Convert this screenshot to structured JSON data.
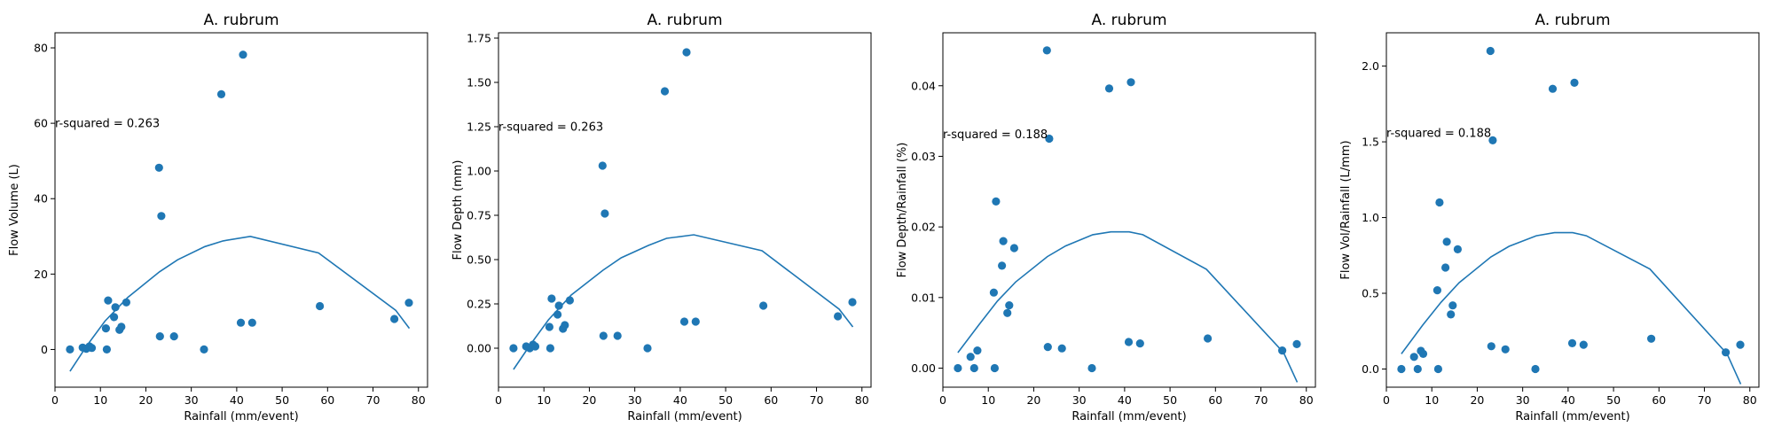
{
  "chart_data": [
    {
      "type": "scatter",
      "title": "A. rubrum",
      "xlabel": "Rainfall (mm/event)",
      "ylabel": "Flow Volume (L)",
      "xlim": [
        0,
        82
      ],
      "ylim": [
        -10,
        84
      ],
      "xticks": [
        0,
        10,
        20,
        30,
        40,
        50,
        60,
        70,
        80
      ],
      "yticks": [
        0,
        20,
        40,
        60,
        80
      ],
      "ytick_labels": [
        "0",
        "20",
        "40",
        "60",
        "80"
      ],
      "annotation": "r-squared = 0.263",
      "annotation_at": [
        0,
        60
      ],
      "points": [
        [
          3.3,
          0
        ],
        [
          6.1,
          0.5
        ],
        [
          6.9,
          0.2
        ],
        [
          7.6,
          0.8
        ],
        [
          8.1,
          0.4
        ],
        [
          11.2,
          5.6
        ],
        [
          11.4,
          0
        ],
        [
          11.7,
          13
        ],
        [
          13,
          8.6
        ],
        [
          13.3,
          11.2
        ],
        [
          14.2,
          5.2
        ],
        [
          14.6,
          6
        ],
        [
          15.7,
          12.5
        ],
        [
          22.9,
          48.2
        ],
        [
          23.1,
          3.5
        ],
        [
          23.4,
          35.4
        ],
        [
          26.2,
          3.5
        ],
        [
          32.8,
          0
        ],
        [
          36.6,
          67.7
        ],
        [
          40.9,
          7.1
        ],
        [
          41.4,
          78.2
        ],
        [
          43.4,
          7.1
        ],
        [
          58.3,
          11.5
        ],
        [
          74.7,
          8.1
        ],
        [
          77.9,
          12.4
        ]
      ],
      "fit_line": [
        [
          3.3,
          -5.8
        ],
        [
          7,
          1
        ],
        [
          11,
          7.5
        ],
        [
          16,
          13.8
        ],
        [
          23,
          20.6
        ],
        [
          27,
          23.8
        ],
        [
          33,
          27.3
        ],
        [
          37,
          28.8
        ],
        [
          43,
          30
        ],
        [
          58,
          25.6
        ],
        [
          75,
          10.4
        ],
        [
          78,
          5.6
        ]
      ]
    },
    {
      "type": "scatter",
      "title": "A. rubrum",
      "xlabel": "Rainfall (mm/event)",
      "ylabel": "Flow Depth (mm)",
      "xlim": [
        0,
        82
      ],
      "ylim": [
        -0.22,
        1.78
      ],
      "xticks": [
        0,
        10,
        20,
        30,
        40,
        50,
        60,
        70,
        80
      ],
      "yticks": [
        0,
        0.25,
        0.5,
        0.75,
        1.0,
        1.25,
        1.5,
        1.75
      ],
      "ytick_labels": [
        "0.00",
        "0.25",
        "0.50",
        "0.75",
        "1.00",
        "1.25",
        "1.50",
        "1.75"
      ],
      "annotation": "r-squared = 0.263",
      "annotation_at": [
        0,
        1.25
      ],
      "points": [
        [
          3.3,
          0
        ],
        [
          6.1,
          0.01
        ],
        [
          6.9,
          0
        ],
        [
          7.6,
          0.02
        ],
        [
          8.1,
          0.01
        ],
        [
          11.2,
          0.12
        ],
        [
          11.4,
          0
        ],
        [
          11.7,
          0.28
        ],
        [
          13,
          0.19
        ],
        [
          13.3,
          0.24
        ],
        [
          14.2,
          0.11
        ],
        [
          14.6,
          0.13
        ],
        [
          15.7,
          0.27
        ],
        [
          22.9,
          1.03
        ],
        [
          23.1,
          0.07
        ],
        [
          23.4,
          0.76
        ],
        [
          26.2,
          0.07
        ],
        [
          32.8,
          0
        ],
        [
          36.6,
          1.45
        ],
        [
          40.9,
          0.15
        ],
        [
          41.4,
          1.67
        ],
        [
          43.4,
          0.15
        ],
        [
          58.3,
          0.24
        ],
        [
          74.7,
          0.18
        ],
        [
          77.9,
          0.26
        ]
      ],
      "fit_line": [
        [
          3.3,
          -0.12
        ],
        [
          7,
          0.02
        ],
        [
          11,
          0.16
        ],
        [
          16,
          0.3
        ],
        [
          23,
          0.44
        ],
        [
          27,
          0.51
        ],
        [
          33,
          0.58
        ],
        [
          37,
          0.62
        ],
        [
          43,
          0.64
        ],
        [
          58,
          0.55
        ],
        [
          75,
          0.22
        ],
        [
          78,
          0.12
        ]
      ]
    },
    {
      "type": "scatter",
      "title": "A. rubrum",
      "xlabel": "Rainfall (mm/event)",
      "ylabel": "Flow Depth/Rainfall (%)",
      "xlim": [
        0,
        82
      ],
      "ylim": [
        -0.0027,
        0.0475
      ],
      "xticks": [
        0,
        10,
        20,
        30,
        40,
        50,
        60,
        70,
        80
      ],
      "yticks": [
        0,
        0.01,
        0.02,
        0.03,
        0.04
      ],
      "ytick_labels": [
        "0.00",
        "0.01",
        "0.02",
        "0.03",
        "0.04"
      ],
      "annotation": "r-squared = 0.188",
      "annotation_at": [
        0,
        0.0331
      ],
      "points": [
        [
          3.3,
          0
        ],
        [
          6.1,
          0.0016
        ],
        [
          6.9,
          0
        ],
        [
          7.6,
          0.0025
        ],
        [
          11.2,
          0.0107
        ],
        [
          11.4,
          0
        ],
        [
          11.7,
          0.0236
        ],
        [
          13,
          0.0145
        ],
        [
          13.3,
          0.018
        ],
        [
          14.2,
          0.0078
        ],
        [
          14.6,
          0.0089
        ],
        [
          15.7,
          0.017
        ],
        [
          22.9,
          0.045
        ],
        [
          23.1,
          0.003
        ],
        [
          23.4,
          0.0325
        ],
        [
          26.2,
          0.0028
        ],
        [
          32.8,
          0
        ],
        [
          36.6,
          0.0396
        ],
        [
          40.9,
          0.0037
        ],
        [
          41.4,
          0.0405
        ],
        [
          43.4,
          0.0035
        ],
        [
          58.3,
          0.0042
        ],
        [
          74.7,
          0.0025
        ],
        [
          77.9,
          0.0034
        ]
      ],
      "fit_line": [
        [
          3.3,
          0.0022
        ],
        [
          8,
          0.0062
        ],
        [
          12,
          0.0095
        ],
        [
          16,
          0.0122
        ],
        [
          23,
          0.0158
        ],
        [
          27,
          0.0173
        ],
        [
          33,
          0.0189
        ],
        [
          37,
          0.0193
        ],
        [
          41,
          0.0193
        ],
        [
          44,
          0.0189
        ],
        [
          58,
          0.014
        ],
        [
          75,
          0.0022
        ],
        [
          78,
          -0.002
        ]
      ]
    },
    {
      "type": "scatter",
      "title": "A. rubrum",
      "xlabel": "Rainfall (mm/event)",
      "ylabel": "Flow Vol/Rainfall (L/mm)",
      "xlim": [
        0,
        82
      ],
      "ylim": [
        -0.12,
        2.22
      ],
      "xticks": [
        0,
        10,
        20,
        30,
        40,
        50,
        60,
        70,
        80
      ],
      "yticks": [
        0,
        0.5,
        1.0,
        1.5,
        2.0
      ],
      "ytick_labels": [
        "0.0",
        "0.5",
        "1.0",
        "1.5",
        "2.0"
      ],
      "annotation": "r-squared = 0.188",
      "annotation_at": [
        0,
        1.56
      ],
      "points": [
        [
          3.3,
          0
        ],
        [
          6.1,
          0.08
        ],
        [
          6.9,
          0
        ],
        [
          7.6,
          0.12
        ],
        [
          8.1,
          0.1
        ],
        [
          11.2,
          0.52
        ],
        [
          11.4,
          0
        ],
        [
          11.7,
          1.1
        ],
        [
          13,
          0.67
        ],
        [
          13.3,
          0.84
        ],
        [
          14.2,
          0.36
        ],
        [
          14.6,
          0.42
        ],
        [
          15.7,
          0.79
        ],
        [
          22.9,
          2.1
        ],
        [
          23.1,
          0.15
        ],
        [
          23.4,
          1.51
        ],
        [
          26.2,
          0.13
        ],
        [
          32.8,
          0
        ],
        [
          36.6,
          1.85
        ],
        [
          40.9,
          0.17
        ],
        [
          41.4,
          1.89
        ],
        [
          43.4,
          0.16
        ],
        [
          58.3,
          0.2
        ],
        [
          74.7,
          0.11
        ],
        [
          77.9,
          0.16
        ]
      ],
      "fit_line": [
        [
          3.3,
          0.1
        ],
        [
          8,
          0.29
        ],
        [
          12,
          0.44
        ],
        [
          16,
          0.57
        ],
        [
          23,
          0.74
        ],
        [
          27,
          0.81
        ],
        [
          33,
          0.88
        ],
        [
          37,
          0.9
        ],
        [
          41,
          0.9
        ],
        [
          44,
          0.88
        ],
        [
          58,
          0.66
        ],
        [
          75,
          0.1
        ],
        [
          78,
          -0.1
        ]
      ]
    }
  ],
  "colors": {
    "marker": "#1f77b4",
    "line": "#1f77b4"
  }
}
